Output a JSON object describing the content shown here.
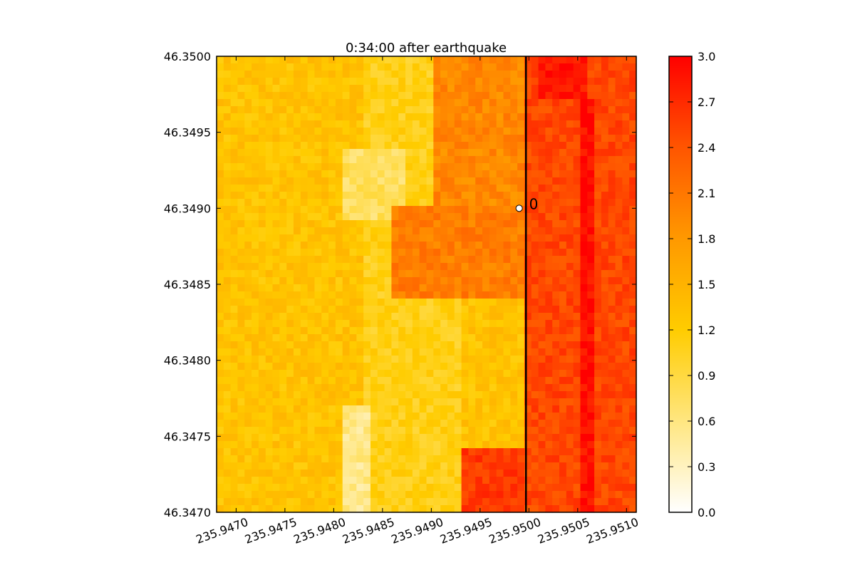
{
  "chart_data": {
    "type": "heatmap",
    "title": "0:34:00 after earthquake",
    "xlabel": "",
    "ylabel": "",
    "xlim": [
      235.9468,
      235.9511
    ],
    "ylim": [
      46.347,
      46.35
    ],
    "x_ticks": [
      "235.9470",
      "235.9475",
      "235.9480",
      "235.9485",
      "235.9490",
      "235.9495",
      "235.9500",
      "235.9505",
      "235.9510"
    ],
    "y_ticks": [
      "46.3470",
      "46.3475",
      "46.3480",
      "46.3485",
      "46.3490",
      "46.3495",
      "46.3500"
    ],
    "colorbar": {
      "range": [
        0,
        3
      ],
      "ticks": [
        "0.0",
        "0.3",
        "0.6",
        "0.9",
        "1.2",
        "1.5",
        "1.8",
        "2.1",
        "2.4",
        "2.7",
        "3.0"
      ],
      "colors": [
        "#ffffff",
        "#ffe680",
        "#ffcc00",
        "#ff9900",
        "#ff5500",
        "#ff0000"
      ]
    },
    "vertical_line": {
      "x": 235.94997,
      "color": "#000000"
    },
    "gauge": {
      "label": "0",
      "x": 235.9499,
      "y": 46.349
    },
    "regions": [
      {
        "x": [
          235.9468,
          235.9483
        ],
        "y": [
          46.347,
          46.35
        ],
        "value": 1.3
      },
      {
        "x": [
          235.9483,
          235.9493
        ],
        "y": [
          46.347,
          46.35
        ],
        "value": 1.1
      },
      {
        "x": [
          235.9481,
          235.9487
        ],
        "y": [
          46.3489,
          46.3494
        ],
        "value": 0.75
      },
      {
        "x": [
          235.9481,
          235.9484
        ],
        "y": [
          46.347,
          46.3477
        ],
        "value": 0.55
      },
      {
        "x": [
          235.9486,
          235.94995
        ],
        "y": [
          46.3484,
          46.349
        ],
        "value": 2.05
      },
      {
        "x": [
          235.949,
          235.94995
        ],
        "y": [
          46.349,
          46.35
        ],
        "value": 1.95
      },
      {
        "x": [
          235.9493,
          235.94995
        ],
        "y": [
          46.347,
          46.3474
        ],
        "value": 2.6
      },
      {
        "x": [
          235.94995,
          235.9511
        ],
        "y": [
          46.347,
          46.35
        ],
        "value": 2.5
      },
      {
        "x": [
          235.9501,
          235.9506
        ],
        "y": [
          46.3497,
          46.35
        ],
        "value": 2.85
      },
      {
        "x": [
          235.9505,
          235.9507
        ],
        "y": [
          46.347,
          46.3497
        ],
        "value": 2.9
      }
    ]
  }
}
